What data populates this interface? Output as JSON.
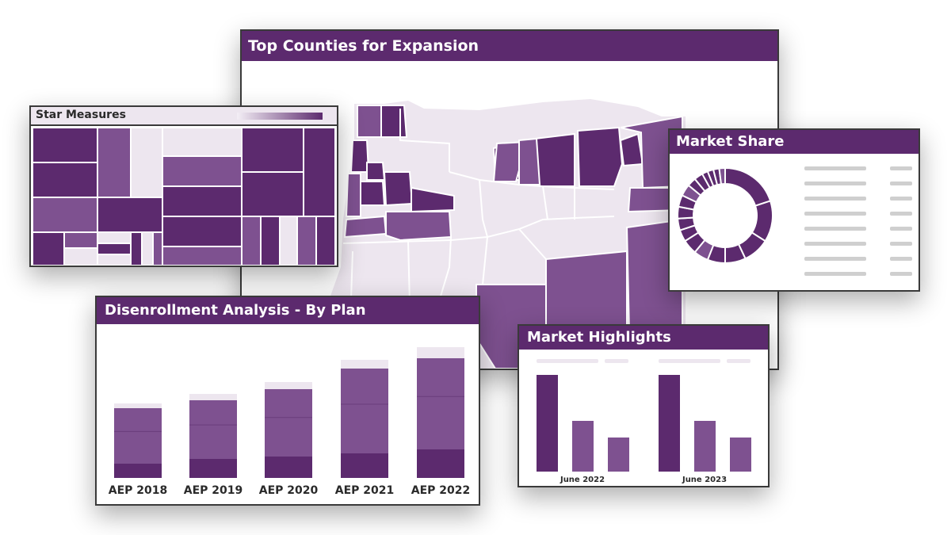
{
  "colors": {
    "dark": "#5c2a6e",
    "mid": "#7e5190",
    "light": "#ede6ef",
    "gray": "#cfcfcf"
  },
  "map_panel": {
    "title": "Top Counties for Expansion"
  },
  "star_panel": {
    "title": "Star Measures"
  },
  "market_share_panel": {
    "title": "Market Share"
  },
  "disenrollment_panel": {
    "title": "Disenrollment Analysis - By Plan"
  },
  "highlights_panel": {
    "title": "Market Highlights"
  },
  "chart_data": [
    {
      "chart": "disenrollment",
      "type": "bar",
      "stacked": true,
      "categories": [
        "AEP 2018",
        "AEP 2019",
        "AEP 2020",
        "AEP 2021",
        "AEP 2022"
      ],
      "series": [
        {
          "values": [
            18,
            24,
            27,
            31,
            36
          ]
        },
        {
          "values": [
            70,
            74,
            85,
            107,
            115
          ]
        },
        {
          "values": [
            6,
            8,
            9,
            11,
            14
          ]
        }
      ]
    },
    {
      "chart": "market_highlights",
      "type": "bar",
      "categories": [
        "June 2022",
        "June 2023"
      ],
      "series": [
        {
          "values": [
            122,
            122
          ]
        },
        {
          "values": [
            64,
            64
          ]
        },
        {
          "values": [
            43,
            43
          ]
        }
      ]
    },
    {
      "chart": "market_share",
      "type": "pie",
      "donut": true,
      "values": [
        20,
        14,
        9,
        7,
        6,
        5,
        5,
        4,
        4,
        4,
        4,
        4,
        3,
        3,
        2,
        2,
        2,
        2
      ]
    }
  ]
}
